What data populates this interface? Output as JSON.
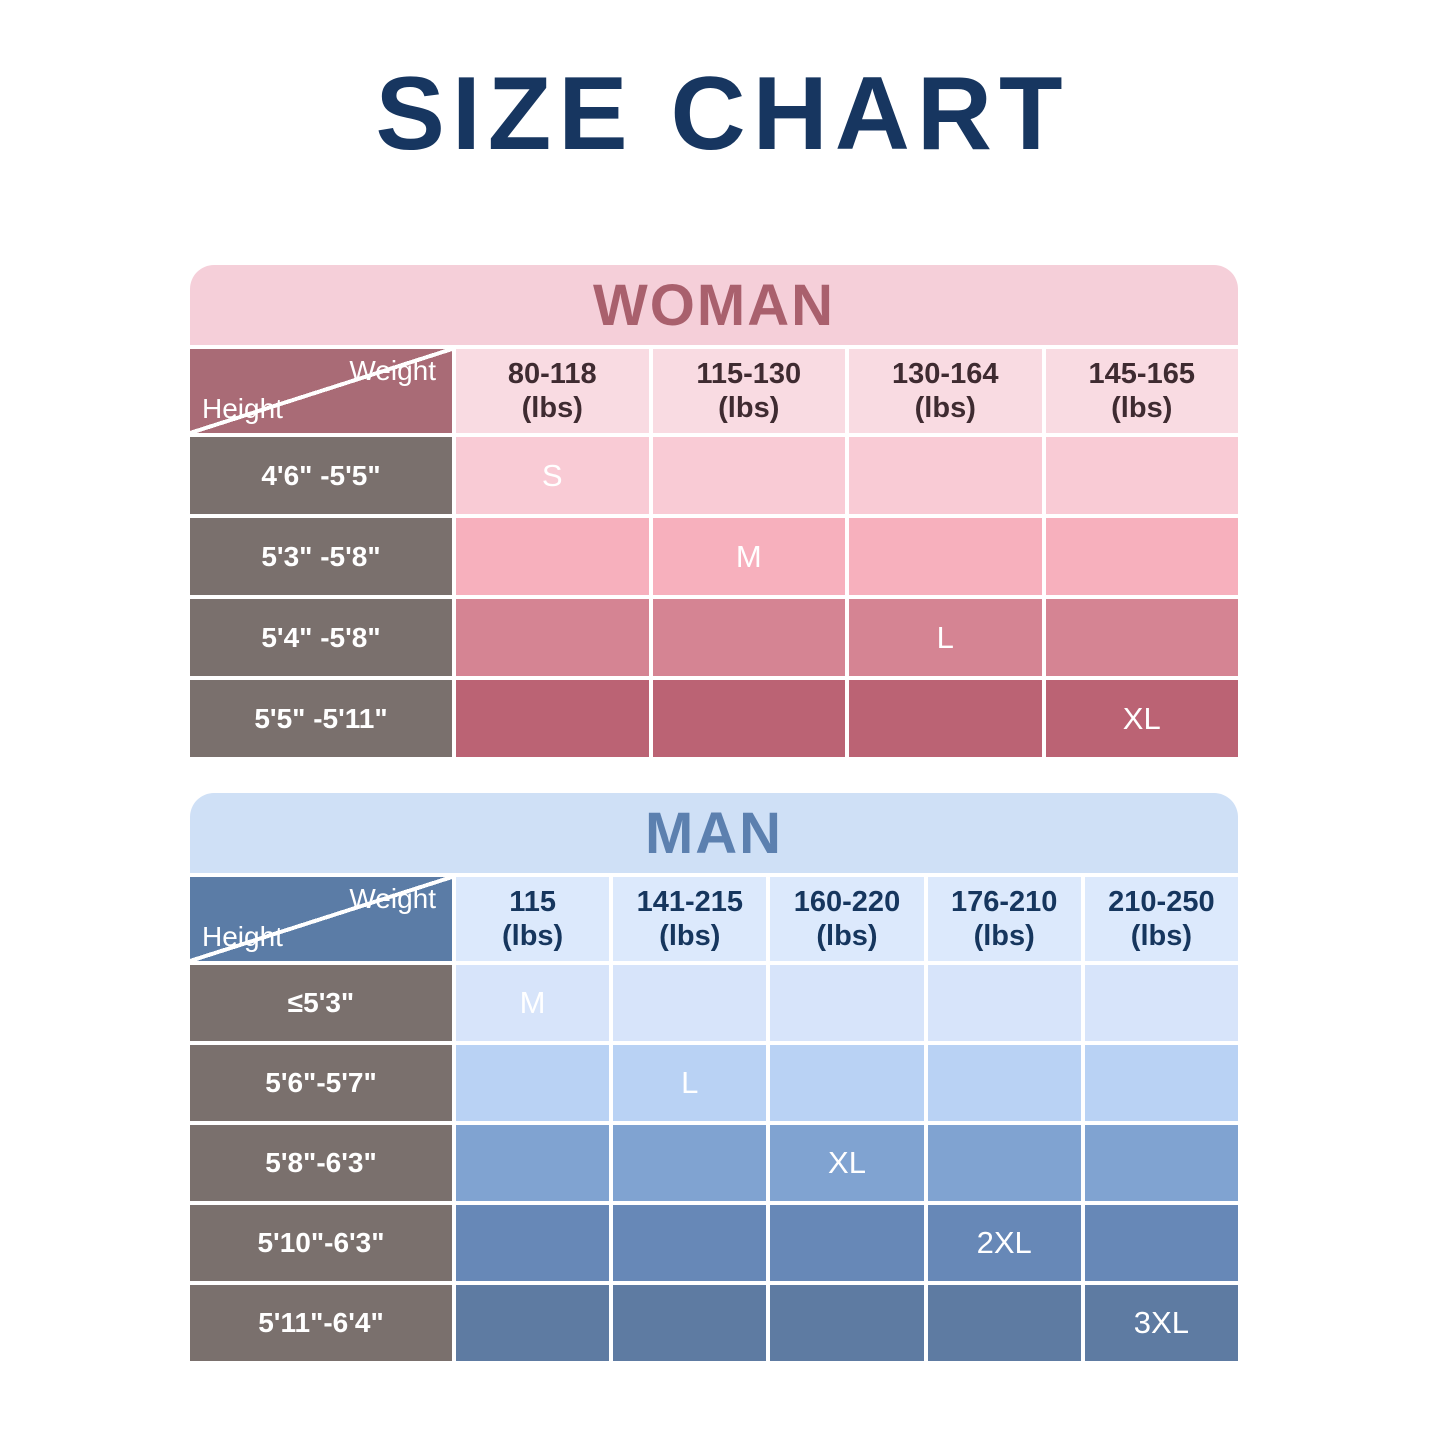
{
  "title": "SIZE CHART",
  "colors": {
    "page_bg": "#ffffff",
    "title_navy": "#173660",
    "woman": {
      "band_bg": "#f5cfd9",
      "band_text": "#a9606d",
      "corner_bg": "#a96b76",
      "header_bg": "#f9dbe2",
      "header_text": "#3f2b31",
      "height_cell_bg": "#7a706d",
      "row_shades": [
        "#f9cbd5",
        "#f7b0bd",
        "#d58493",
        "#bb6374"
      ]
    },
    "man": {
      "band_bg": "#cfe0f6",
      "band_text": "#5c80af",
      "corner_bg": "#5b7ca6",
      "header_bg": "#dce9fc",
      "header_text": "#16365e",
      "height_cell_bg": "#7a706d",
      "row_shades": [
        "#d7e4fa",
        "#b9d2f4",
        "#80a3d1",
        "#6788b7",
        "#5e7ba2"
      ]
    }
  },
  "chart_data": [
    {
      "type": "table",
      "title": "WOMAN",
      "corner": {
        "top_right": "Weight",
        "bottom_left": "Height"
      },
      "columns": [
        {
          "range": "80-118",
          "unit": "(lbs)"
        },
        {
          "range": "115-130",
          "unit": "(lbs)"
        },
        {
          "range": "130-164",
          "unit": "(lbs)"
        },
        {
          "range": "145-165",
          "unit": "(lbs)"
        }
      ],
      "rows": [
        {
          "height": "4'6\" -5'5\"",
          "size": "S",
          "cells": [
            "S",
            "",
            "",
            ""
          ]
        },
        {
          "height": "5'3\" -5'8\"",
          "size": "M",
          "cells": [
            "",
            "M",
            "",
            ""
          ]
        },
        {
          "height": "5'4\" -5'8\"",
          "size": "L",
          "cells": [
            "",
            "",
            "L",
            ""
          ]
        },
        {
          "height": "5'5\" -5'11\"",
          "size": "XL",
          "cells": [
            "",
            "",
            "",
            "XL"
          ]
        }
      ]
    },
    {
      "type": "table",
      "title": "MAN",
      "corner": {
        "top_right": "Weight",
        "bottom_left": "Height"
      },
      "columns": [
        {
          "range": "115",
          "unit": "(lbs)"
        },
        {
          "range": "141-215",
          "unit": "(lbs)"
        },
        {
          "range": "160-220",
          "unit": "(lbs)"
        },
        {
          "range": "176-210",
          "unit": "(lbs)"
        },
        {
          "range": "210-250",
          "unit": "(lbs)"
        }
      ],
      "rows": [
        {
          "height": "≤5'3\"",
          "size": "M",
          "cells": [
            "M",
            "",
            "",
            "",
            ""
          ]
        },
        {
          "height": "5'6\"-5'7\"",
          "size": "L",
          "cells": [
            "",
            "L",
            "",
            "",
            ""
          ]
        },
        {
          "height": "5'8\"-6'3\"",
          "size": "XL",
          "cells": [
            "",
            "",
            "XL",
            "",
            ""
          ]
        },
        {
          "height": "5'10\"-6'3\"",
          "size": "2XL",
          "cells": [
            "",
            "",
            "",
            "2XL",
            ""
          ]
        },
        {
          "height": "5'11\"-6'4\"",
          "size": "3XL",
          "cells": [
            "",
            "",
            "",
            "",
            "3XL"
          ]
        }
      ]
    }
  ]
}
